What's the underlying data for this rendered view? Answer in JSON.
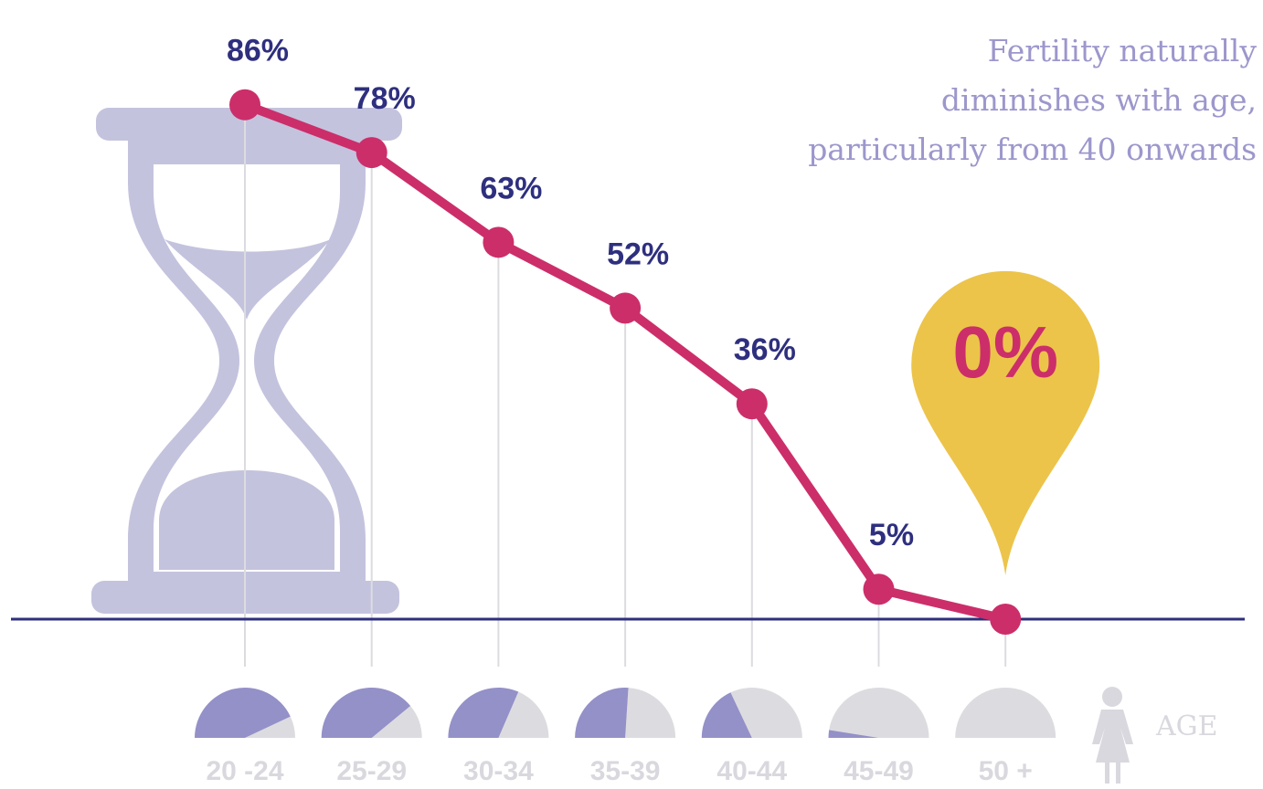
{
  "chart_data": {
    "type": "line",
    "title": [
      "Fertility naturally",
      "diminishes with age,",
      "particularly from 40 onwards"
    ],
    "categories": [
      "20 -24",
      "25-29",
      "30-34",
      "35-39",
      "40-44",
      "45-49",
      "50 +"
    ],
    "values": [
      86,
      78,
      63,
      52,
      36,
      5,
      0
    ],
    "value_labels": [
      "86%",
      "78%",
      "63%",
      "52%",
      "36%",
      "5%",
      "0%"
    ],
    "color": "#cc2e6a",
    "ylim": [
      0,
      100
    ],
    "x_label": "AGE"
  }
}
